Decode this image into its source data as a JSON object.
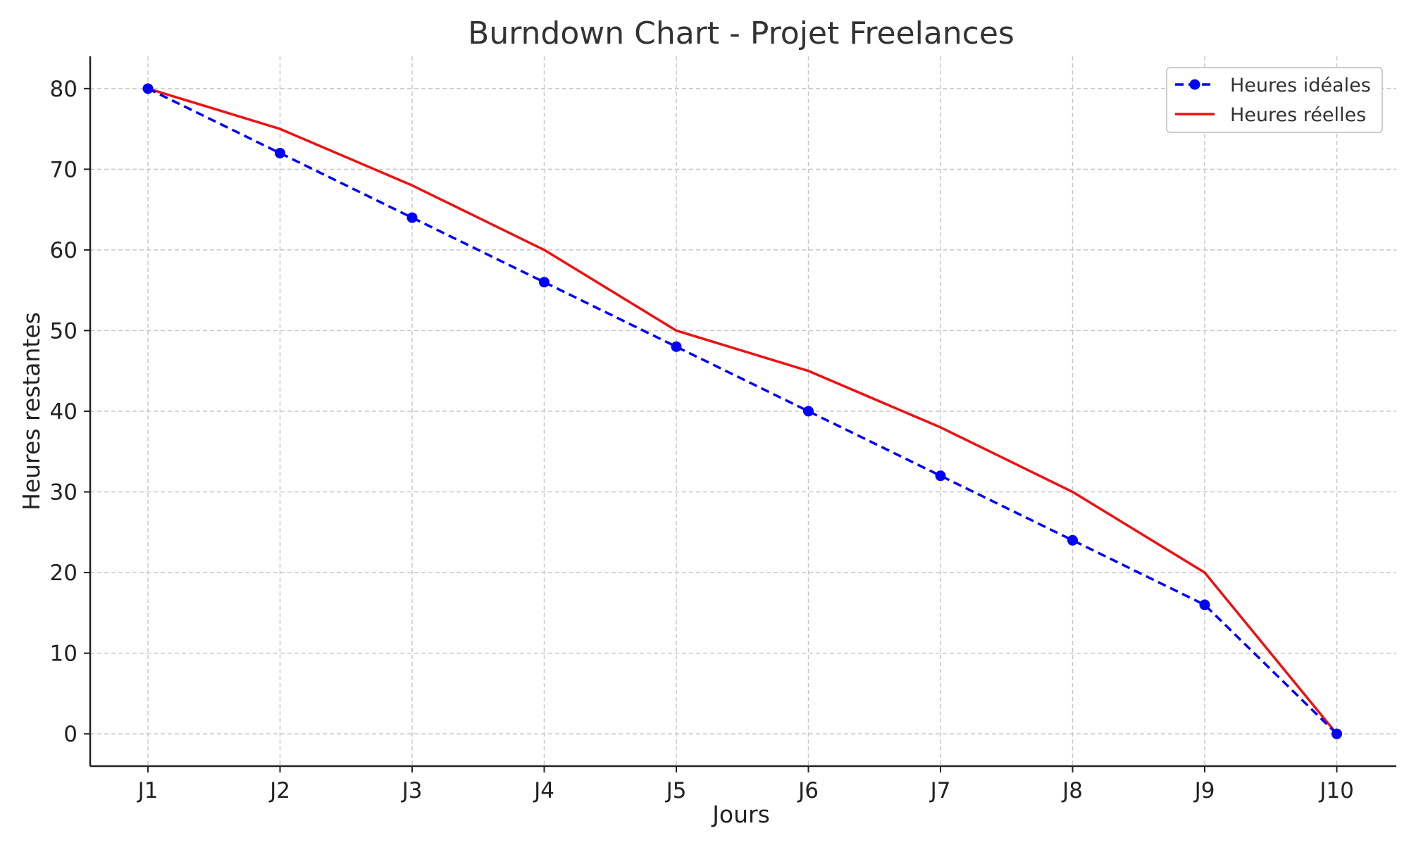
{
  "chart_data": {
    "type": "line",
    "title": "Burndown Chart - Projet Freelances",
    "xlabel": "Jours",
    "ylabel": "Heures restantes",
    "categories": [
      "J1",
      "J2",
      "J3",
      "J4",
      "J5",
      "J6",
      "J7",
      "J8",
      "J9",
      "J10"
    ],
    "ylim": [
      -4,
      84
    ],
    "yticks": [
      0,
      10,
      20,
      30,
      40,
      50,
      60,
      70,
      80
    ],
    "grid": true,
    "legend_position": "top-right",
    "series": [
      {
        "name": "Heures idéales",
        "values": [
          80,
          72,
          64,
          56,
          48,
          40,
          32,
          24,
          16,
          0
        ],
        "color": "#0000ff",
        "line_style": "dashed",
        "marker": "circle"
      },
      {
        "name": "Heures réelles",
        "values": [
          80,
          75,
          68,
          60,
          50,
          45,
          38,
          30,
          20,
          0
        ],
        "color": "#ee1111",
        "line_style": "solid",
        "marker": "none"
      }
    ]
  }
}
